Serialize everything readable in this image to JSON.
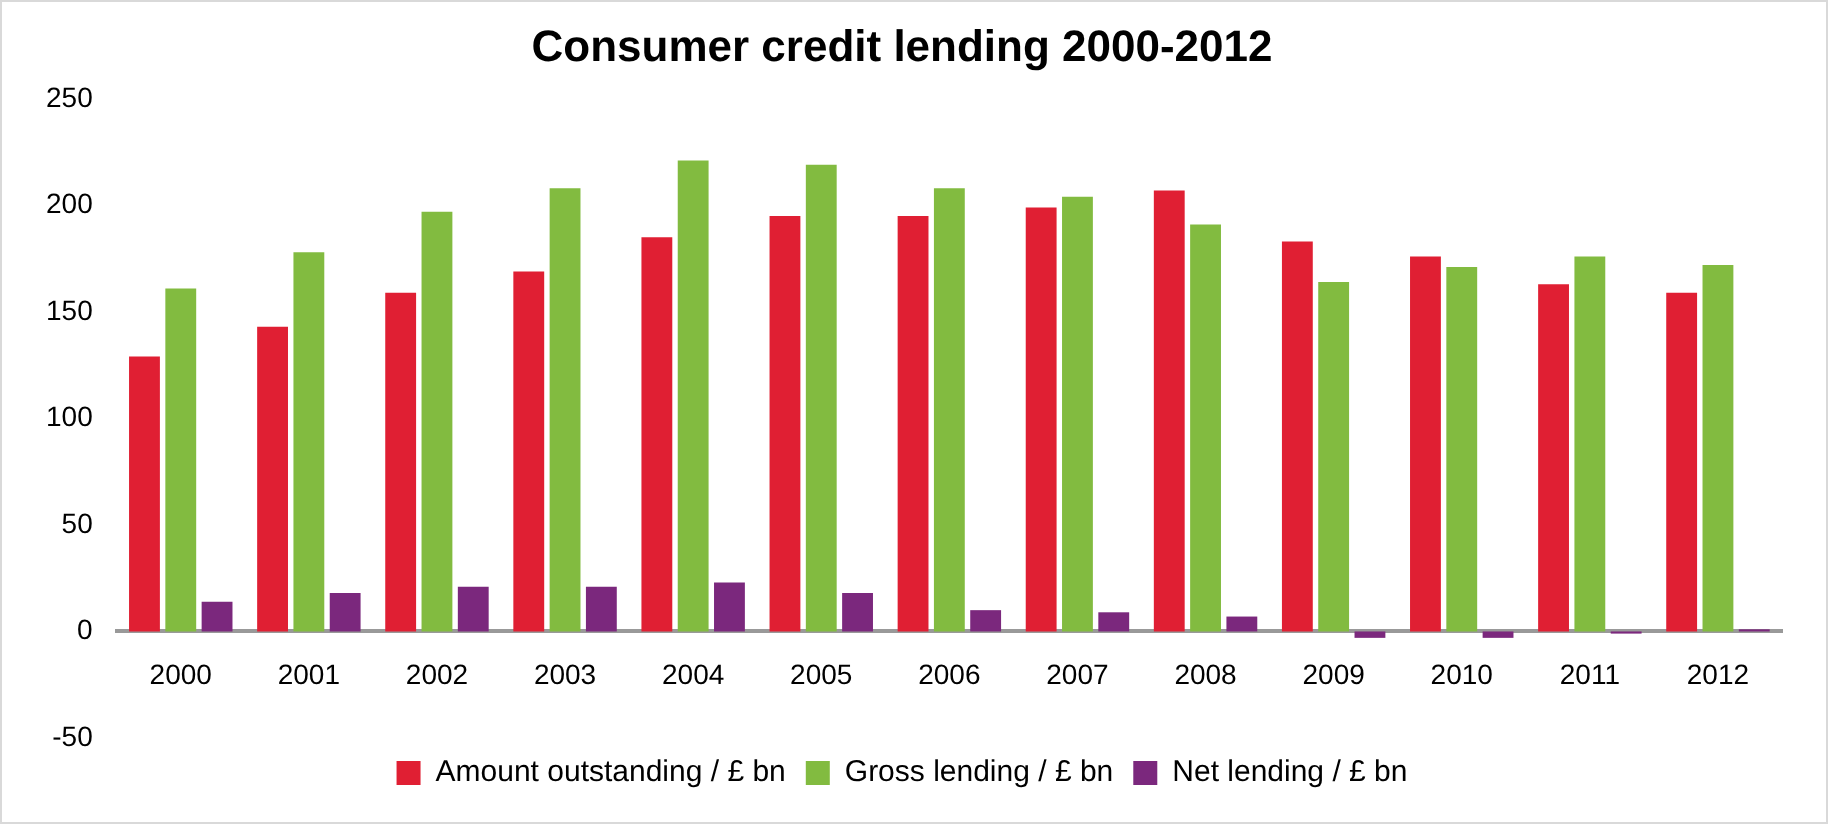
{
  "chart_data": {
    "type": "bar",
    "title": "Consumer credit lending 2000-2012",
    "categories": [
      "2000",
      "2001",
      "2002",
      "2003",
      "2004",
      "2005",
      "2006",
      "2007",
      "2008",
      "2009",
      "2010",
      "2011",
      "2012"
    ],
    "series": [
      {
        "name": "Amount outstanding / £ bn",
        "color": "#e01f33",
        "values": [
          129,
          143,
          159,
          169,
          185,
          195,
          195,
          199,
          207,
          183,
          176,
          163,
          159
        ]
      },
      {
        "name": "Gross lending / £ bn",
        "color": "#82bb40",
        "values": [
          161,
          178,
          197,
          208,
          221,
          219,
          208,
          204,
          191,
          164,
          171,
          176,
          172
        ]
      },
      {
        "name": "Net lending / £ bn",
        "color": "#7b287d",
        "values": [
          14,
          18,
          21,
          21,
          23,
          18,
          10,
          9,
          7,
          -3,
          -3,
          -1,
          1
        ]
      }
    ],
    "ylim": [
      -50,
      250
    ],
    "yticks": [
      -50,
      0,
      50,
      100,
      150,
      200,
      250
    ],
    "grid": false,
    "legend": "bottom"
  }
}
